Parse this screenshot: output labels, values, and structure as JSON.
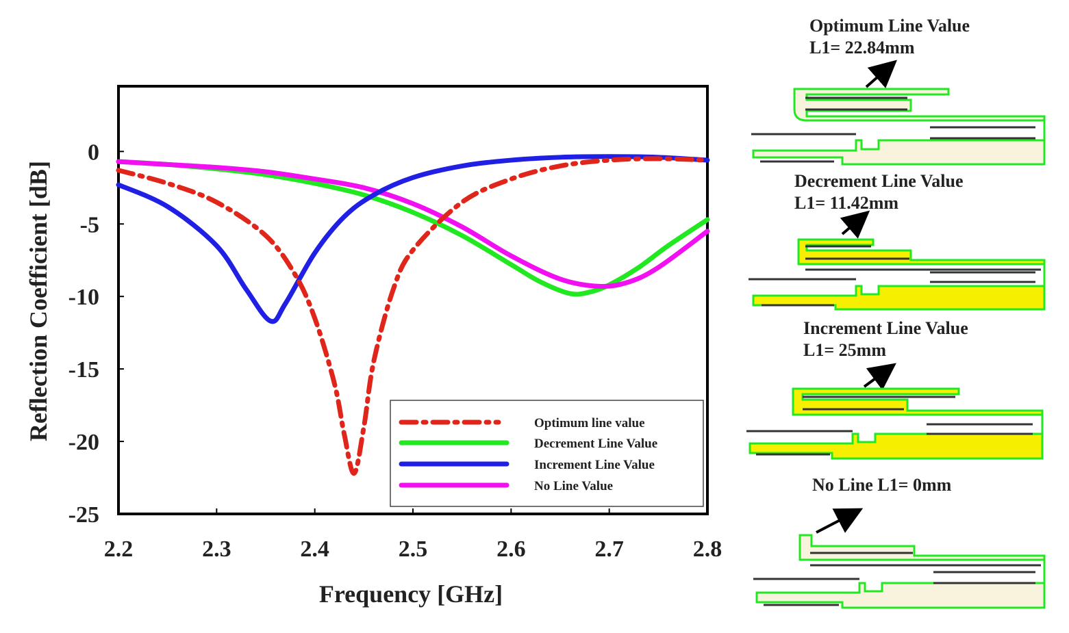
{
  "chart_data": {
    "type": "line",
    "xlabel": "Frequency [GHz]",
    "ylabel": "Reflection Coefficient [dB]",
    "xlim": [
      2.2,
      2.8
    ],
    "ylim": [
      -25,
      4.5
    ],
    "x_ticks": [
      "2.2",
      "2.3",
      "2.4",
      "2.5",
      "2.6",
      "2.7",
      "2.8"
    ],
    "y_ticks": [
      "0",
      "-5",
      "-10",
      "-15",
      "-20",
      "-25"
    ],
    "legend_position": "bottom-right",
    "series": [
      {
        "name": "Optimum line value",
        "color": "#e0261b",
        "style": "dashdot",
        "x": [
          2.2,
          2.25,
          2.3,
          2.35,
          2.38,
          2.4,
          2.42,
          2.43,
          2.44,
          2.45,
          2.46,
          2.48,
          2.5,
          2.55,
          2.6,
          2.65,
          2.7,
          2.75,
          2.8
        ],
        "y": [
          -1.3,
          -2.2,
          -3.5,
          -5.8,
          -8.5,
          -11.5,
          -16.0,
          -19.5,
          -22.2,
          -19.0,
          -14.5,
          -9.5,
          -6.8,
          -3.5,
          -1.9,
          -1.0,
          -0.6,
          -0.5,
          -0.6
        ]
      },
      {
        "name": "Decrement Line Value",
        "color": "#22e822",
        "style": "solid",
        "x": [
          2.2,
          2.25,
          2.3,
          2.35,
          2.4,
          2.45,
          2.5,
          2.55,
          2.6,
          2.63,
          2.66,
          2.68,
          2.7,
          2.73,
          2.76,
          2.8
        ],
        "y": [
          -0.7,
          -0.9,
          -1.2,
          -1.6,
          -2.2,
          -3.0,
          -4.2,
          -5.8,
          -7.8,
          -9.0,
          -9.8,
          -9.7,
          -9.2,
          -8.0,
          -6.5,
          -4.7
        ]
      },
      {
        "name": "Increment Line Value",
        "color": "#1f20e3",
        "style": "solid",
        "x": [
          2.2,
          2.25,
          2.3,
          2.33,
          2.355,
          2.37,
          2.4,
          2.43,
          2.46,
          2.5,
          2.55,
          2.6,
          2.65,
          2.7,
          2.75,
          2.8
        ],
        "y": [
          -2.3,
          -3.8,
          -6.5,
          -9.5,
          -11.7,
          -10.5,
          -7.0,
          -4.5,
          -3.0,
          -1.8,
          -1.0,
          -0.6,
          -0.4,
          -0.35,
          -0.4,
          -0.6
        ]
      },
      {
        "name": "No Line Value",
        "color": "#f20ff2",
        "style": "solid",
        "x": [
          2.2,
          2.25,
          2.3,
          2.35,
          2.4,
          2.45,
          2.5,
          2.55,
          2.6,
          2.65,
          2.69,
          2.72,
          2.75,
          2.8
        ],
        "y": [
          -0.7,
          -0.9,
          -1.1,
          -1.4,
          -1.9,
          -2.5,
          -3.6,
          -5.2,
          -7.2,
          -8.8,
          -9.3,
          -9.0,
          -8.0,
          -5.5
        ]
      }
    ]
  },
  "panels": [
    {
      "title": "Optimum Line Value",
      "value": "L1= 22.84mm",
      "fill": "#f7f3dc"
    },
    {
      "title": "Decrement Line Value",
      "value": "L1= 11.42mm",
      "fill": "#f6f000"
    },
    {
      "title": "Increment Line Value",
      "value": "L1= 25mm",
      "fill": "#f6f000"
    },
    {
      "title": "No Line L1= 0mm",
      "value": "",
      "fill": "#f7f3dc"
    }
  ],
  "colors": {
    "trace_outline": "#22e822",
    "inner_line": "#333333",
    "arrow": "#000000"
  }
}
